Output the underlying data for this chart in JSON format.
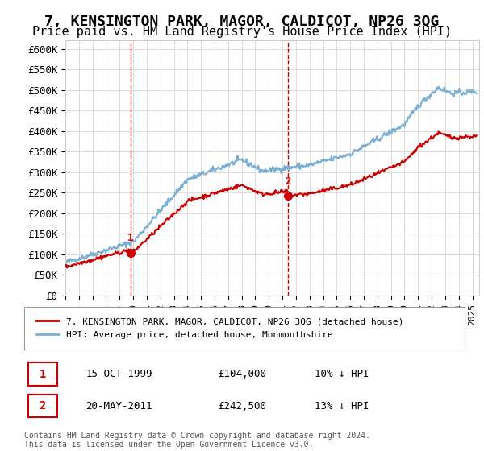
{
  "title": "7, KENSINGTON PARK, MAGOR, CALDICOT, NP26 3QG",
  "subtitle": "Price paid vs. HM Land Registry's House Price Index (HPI)",
  "title_fontsize": 13,
  "subtitle_fontsize": 11,
  "hpi_color": "#7aafd4",
  "property_color": "#cc0000",
  "marker_color": "#cc0000",
  "vline_color": "#cc0000",
  "background_color": "#ffffff",
  "grid_color": "#dddddd",
  "ylim": [
    0,
    620000
  ],
  "xlim_start": 1995.0,
  "xlim_end": 2025.5,
  "yticks": [
    0,
    50000,
    100000,
    150000,
    200000,
    250000,
    300000,
    350000,
    400000,
    450000,
    500000,
    550000,
    600000
  ],
  "ytick_labels": [
    "£0",
    "£50K",
    "£100K",
    "£150K",
    "£200K",
    "£250K",
    "£300K",
    "£350K",
    "£400K",
    "£450K",
    "£500K",
    "£550K",
    "£600K"
  ],
  "purchase1_x": 1999.79,
  "purchase1_y": 104000,
  "purchase1_label": "1",
  "purchase2_x": 2011.38,
  "purchase2_y": 242500,
  "purchase2_label": "2",
  "legend_property": "7, KENSINGTON PARK, MAGOR, CALDICOT, NP26 3QG (detached house)",
  "legend_hpi": "HPI: Average price, detached house, Monmouthshire",
  "table_row1_num": "1",
  "table_row1_date": "15-OCT-1999",
  "table_row1_price": "£104,000",
  "table_row1_hpi": "10% ↓ HPI",
  "table_row2_num": "2",
  "table_row2_date": "20-MAY-2011",
  "table_row2_price": "£242,500",
  "table_row2_hpi": "13% ↓ HPI",
  "footer": "Contains HM Land Registry data © Crown copyright and database right 2024.\nThis data is licensed under the Open Government Licence v3.0."
}
